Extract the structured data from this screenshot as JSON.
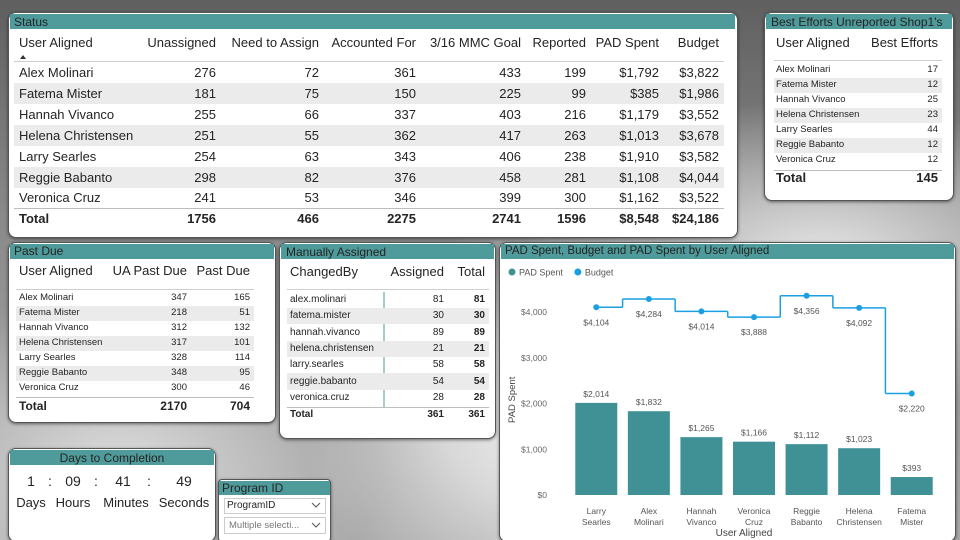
{
  "status": {
    "title": "Status",
    "columns": [
      "User Aligned",
      "Unassigned",
      "Need to Assign",
      "Accounted For",
      "3/16 MMC Goal",
      "Reported",
      "PAD Spent",
      "Budget"
    ],
    "rows": [
      [
        "Alex Molinari",
        "276",
        "72",
        "361",
        "433",
        "199",
        "$1,792",
        "$3,822"
      ],
      [
        "Fatema Mister",
        "181",
        "75",
        "150",
        "225",
        "99",
        "$385",
        "$1,986"
      ],
      [
        "Hannah Vivanco",
        "255",
        "66",
        "337",
        "403",
        "216",
        "$1,179",
        "$3,552"
      ],
      [
        "Helena Christensen",
        "251",
        "55",
        "362",
        "417",
        "263",
        "$1,013",
        "$3,678"
      ],
      [
        "Larry Searles",
        "254",
        "63",
        "343",
        "406",
        "238",
        "$1,910",
        "$3,582"
      ],
      [
        "Reggie Babanto",
        "298",
        "82",
        "376",
        "458",
        "281",
        "$1,108",
        "$4,044"
      ],
      [
        "Veronica Cruz",
        "241",
        "53",
        "346",
        "399",
        "300",
        "$1,162",
        "$3,522"
      ]
    ],
    "total": [
      "Total",
      "1756",
      "466",
      "2275",
      "2741",
      "1596",
      "$8,548",
      "$24,186"
    ]
  },
  "best_efforts": {
    "title": "Best Efforts Unreported Shop1's",
    "columns": [
      "User Aligned",
      "Best Efforts"
    ],
    "rows": [
      [
        "Alex Molinari",
        "17"
      ],
      [
        "Fatema Mister",
        "12"
      ],
      [
        "Hannah Vivanco",
        "25"
      ],
      [
        "Helena Christensen",
        "23"
      ],
      [
        "Larry Searles",
        "44"
      ],
      [
        "Reggie Babanto",
        "12"
      ],
      [
        "Veronica Cruz",
        "12"
      ]
    ],
    "total": [
      "Total",
      "145"
    ]
  },
  "past_due": {
    "title": "Past Due",
    "columns": [
      "User Aligned",
      "UA Past Due",
      "Past Due"
    ],
    "rows": [
      [
        "Alex Molinari",
        "347",
        "165"
      ],
      [
        "Fatema Mister",
        "218",
        "51"
      ],
      [
        "Hannah Vivanco",
        "312",
        "132"
      ],
      [
        "Helena Christensen",
        "317",
        "101"
      ],
      [
        "Larry Searles",
        "328",
        "114"
      ],
      [
        "Reggie Babanto",
        "348",
        "95"
      ],
      [
        "Veronica Cruz",
        "300",
        "46"
      ]
    ],
    "total": [
      "Total",
      "2170",
      "704"
    ]
  },
  "manually_assigned": {
    "title": "Manually Assigned",
    "columns": [
      "ChangedBy",
      "Assigned",
      "Total"
    ],
    "rows": [
      [
        "alex.molinari",
        "81",
        "81"
      ],
      [
        "fatema.mister",
        "30",
        "30"
      ],
      [
        "hannah.vivanco",
        "89",
        "89"
      ],
      [
        "helena.christensen",
        "21",
        "21"
      ],
      [
        "larry.searles",
        "58",
        "58"
      ],
      [
        "reggie.babanto",
        "54",
        "54"
      ],
      [
        "veronica.cruz",
        "28",
        "28"
      ]
    ],
    "total": [
      "Total",
      "361",
      "361"
    ]
  },
  "days": {
    "title": "Days to Completion",
    "values": [
      "1",
      "09",
      "41",
      "49"
    ],
    "separator": ":",
    "units": [
      "Days",
      "Hours",
      "Minutes",
      "Seconds"
    ]
  },
  "program": {
    "title": "Program ID",
    "dropdowns": [
      "ProgramID",
      "Multiple selecti..."
    ]
  },
  "chart_data": {
    "type": "combo",
    "title": "PAD Spent, Budget and PAD Spent by User Aligned",
    "x_label": "User Aligned",
    "y_label": "PAD Spent",
    "categories": [
      "Larry Searles",
      "Alex Molinari",
      "Hannah Vivanco",
      "Veronica Cruz",
      "Reggie Babanto",
      "Helena Christensen",
      "Fatema Mister"
    ],
    "series": [
      {
        "name": "PAD Spent",
        "type": "bar",
        "color": "#3f9196",
        "values": [
          2014,
          1832,
          1265,
          1166,
          1112,
          1023,
          393
        ],
        "value_labels": [
          "$2,014",
          "$1,832",
          "$1,265",
          "$1,166",
          "$1,112",
          "$1,023",
          "$393"
        ]
      },
      {
        "name": "Budget",
        "type": "line",
        "color": "#1a9fe3",
        "values": [
          4104,
          4284,
          4014,
          3888,
          4356,
          4092,
          2220
        ],
        "value_labels": [
          "$4,104",
          "$4,284",
          "$4,014",
          "$3,888",
          "$4,356",
          "$4,092",
          "$2,220"
        ]
      }
    ],
    "ylim": [
      0,
      4600
    ],
    "yticks": [
      {
        "value": 0,
        "label": "$0"
      },
      {
        "value": 1000,
        "label": "$1,000"
      },
      {
        "value": 2000,
        "label": "$2,000"
      },
      {
        "value": 3000,
        "label": "$3,000"
      },
      {
        "value": 4000,
        "label": "$4,000"
      }
    ],
    "legend": "top-left"
  }
}
